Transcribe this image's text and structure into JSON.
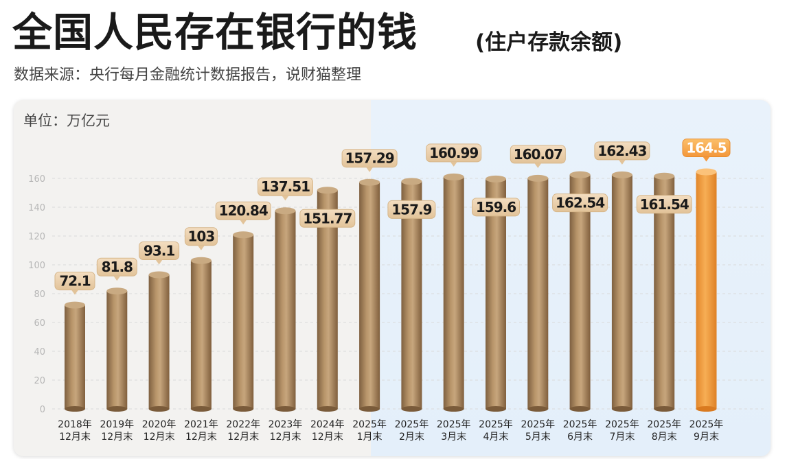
{
  "header": {
    "title": "全国人民存在银行的钱",
    "title_suffix": "(住户存款余额)",
    "source": "数据来源：央行每月金融统计数据报告，说财猫整理"
  },
  "chart_data": {
    "type": "bar",
    "title": "全国人民存在银行的钱",
    "subtitle": "(住户存款余额)",
    "unit": "单位：万亿元",
    "categories": [
      [
        "2018年",
        "12月末"
      ],
      [
        "2019年",
        "12月末"
      ],
      [
        "2020年",
        "12月末"
      ],
      [
        "2021年",
        "12月末"
      ],
      [
        "2022年",
        "12月末"
      ],
      [
        "2023年",
        "12月末"
      ],
      [
        "2024年",
        "12月末"
      ],
      [
        "2025年",
        "1月末"
      ],
      [
        "2025年",
        "2月末"
      ],
      [
        "2025年",
        "3月末"
      ],
      [
        "2025年",
        "4月末"
      ],
      [
        "2025年",
        "5月末"
      ],
      [
        "2025年",
        "6月末"
      ],
      [
        "2025年",
        "7月末"
      ],
      [
        "2025年",
        "8月末"
      ],
      [
        "2025年",
        "9月末"
      ]
    ],
    "values": [
      72.1,
      81.8,
      93.1,
      103,
      120.84,
      137.51,
      151.77,
      157.29,
      157.9,
      160.99,
      159.6,
      160.07,
      162.54,
      162.43,
      161.54,
      164.5
    ],
    "value_labels": [
      "72.1",
      "81.8",
      "93.1",
      "103",
      "120.84",
      "137.51",
      "151.77",
      "157.29",
      "157.9",
      "160.99",
      "159.6",
      "160.07",
      "162.54",
      "162.43",
      "161.54",
      "164.5"
    ],
    "label_position": [
      "above",
      "above",
      "above",
      "above",
      "above",
      "above",
      "below",
      "above",
      "below",
      "above",
      "below",
      "above",
      "below",
      "above",
      "below",
      "above"
    ],
    "highlight_index": 15,
    "yticks": [
      0,
      20,
      40,
      60,
      80,
      100,
      120,
      140,
      160
    ],
    "ylim": [
      0,
      180
    ],
    "grid": true,
    "colors": {
      "bar": "#a9865c",
      "bar_highlight": "#f5a040",
      "highlight_band": "#e6f0fa",
      "grid": "#dadada"
    }
  }
}
